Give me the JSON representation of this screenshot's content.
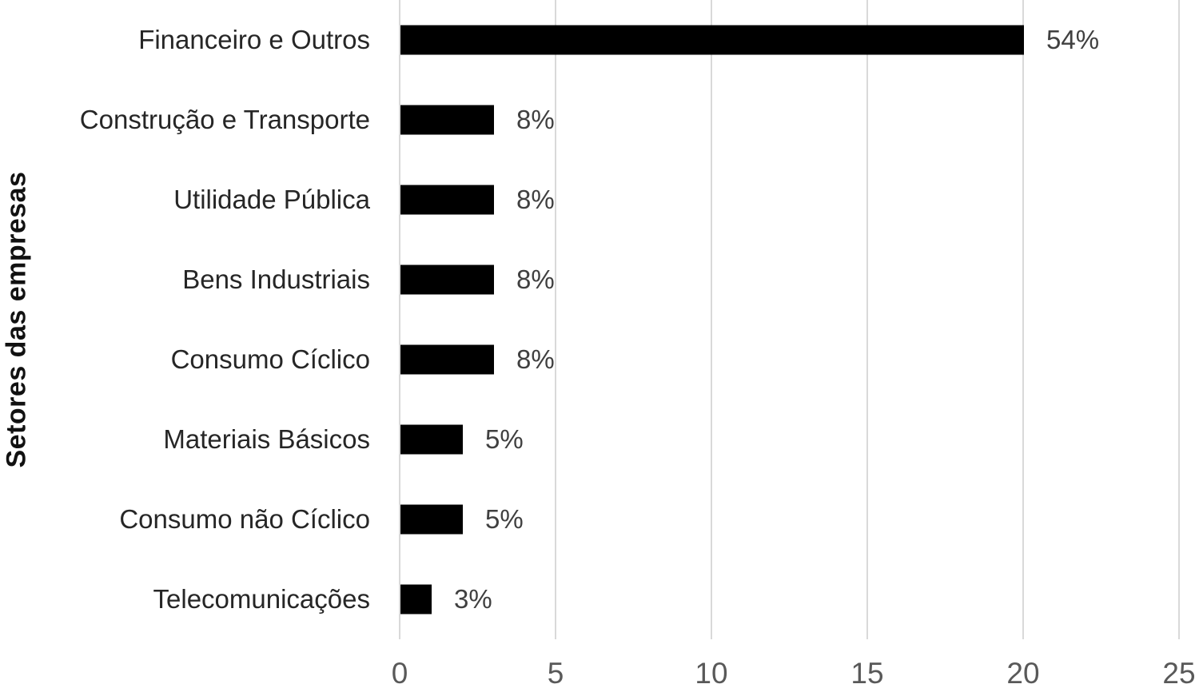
{
  "chart_data": {
    "type": "bar",
    "orientation": "horizontal",
    "title": "",
    "xlabel": "",
    "ylabel": "Setores das empresas",
    "categories": [
      "Financeiro e Outros",
      "Construção e Transporte",
      "Utilidade Pública",
      "Bens Industriais",
      "Consumo Cíclico",
      "Materiais Básicos",
      "Consumo não Cíclico",
      "Telecomunicações"
    ],
    "values": [
      20,
      3,
      3,
      3,
      3,
      2,
      2,
      1
    ],
    "data_labels": [
      "54%",
      "8%",
      "8%",
      "8%",
      "8%",
      "5%",
      "5%",
      "3%"
    ],
    "x_ticks": [
      "0",
      "5",
      "10",
      "15",
      "20",
      "25"
    ],
    "xlim": [
      0,
      25
    ],
    "grid": "vertical-only",
    "legend": "none",
    "colors": {
      "bar": "#000000",
      "gridline": "#d9d9d9",
      "category_label": "#262626",
      "data_label": "#404040",
      "tick_label": "#595959",
      "axis_title": "#111111",
      "background": "#ffffff"
    }
  }
}
